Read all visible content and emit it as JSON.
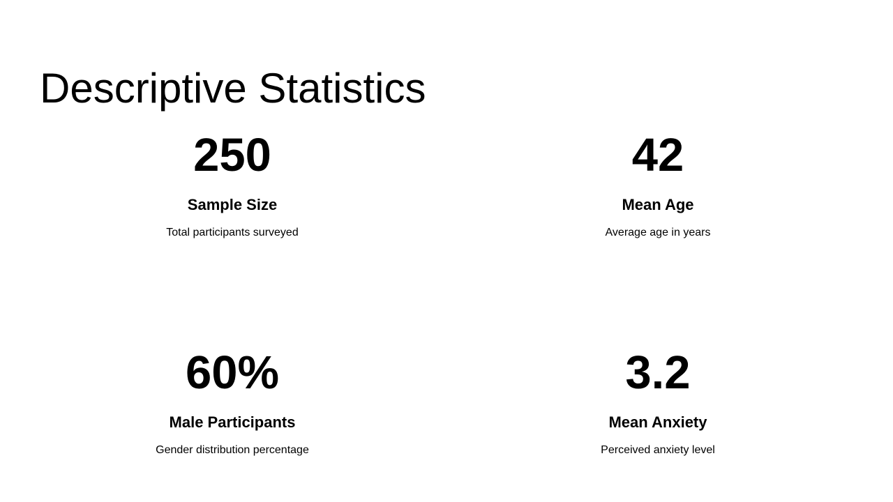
{
  "page": {
    "title": "Descriptive Statistics",
    "background_color": "#ffffff",
    "text_color": "#000000"
  },
  "stats": [
    {
      "value": "250",
      "label": "Sample Size",
      "description": "Total participants surveyed"
    },
    {
      "value": "42",
      "label": "Mean Age",
      "description": "Average age in years"
    },
    {
      "value": "60%",
      "label": "Male Participants",
      "description": "Gender distribution percentage"
    },
    {
      "value": "3.2",
      "label": "Mean Anxiety",
      "description": "Perceived anxiety level"
    }
  ]
}
